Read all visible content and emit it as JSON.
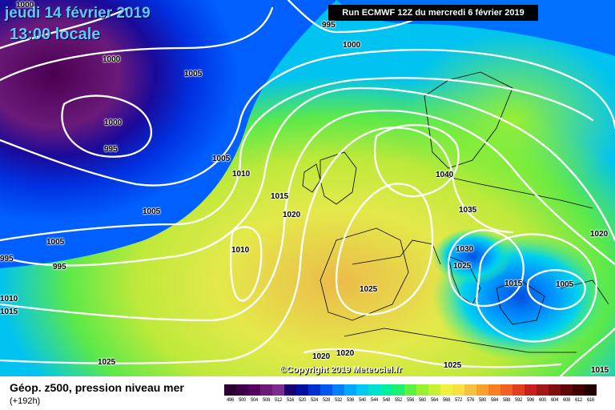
{
  "header": {
    "date": "jeudi 14 février 2019",
    "local_time": "13:00 locale",
    "run_info": "Run ECMWF 12Z du mercredi 6 février 2019",
    "copyright": "©Copyright 2019 Meteociel.fr"
  },
  "legend": {
    "title": "Géop. z500, pression niveau mer",
    "subtitle": "(+192h)",
    "scale_values": [
      "496",
      "500",
      "504",
      "508",
      "512",
      "516",
      "520",
      "524",
      "528",
      "532",
      "536",
      "540",
      "544",
      "548",
      "552",
      "556",
      "560",
      "564",
      "568",
      "572",
      "576",
      "580",
      "584",
      "588",
      "592",
      "596",
      "600",
      "604",
      "608",
      "612",
      "616"
    ],
    "scale_colors": [
      "#2b0033",
      "#3d0048",
      "#55005e",
      "#6b1a78",
      "#7a2d8f",
      "#1a0070",
      "#0010a0",
      "#0030d0",
      "#0058ee",
      "#0080ff",
      "#00a8ff",
      "#00c8f0",
      "#00e0d0",
      "#00f0a0",
      "#20f070",
      "#60f040",
      "#98f030",
      "#c8f030",
      "#f0f040",
      "#f8e040",
      "#f8c040",
      "#f8a030",
      "#f88020",
      "#f06020",
      "#e04020",
      "#c82020",
      "#a01818",
      "#801010",
      "#600808",
      "#400000",
      "#200000"
    ]
  },
  "isobar_labels": [
    {
      "text": "995"
    },
    {
      "text": "1000"
    },
    {
      "text": "1000"
    },
    {
      "text": "1005"
    },
    {
      "text": "1000"
    },
    {
      "text": "995"
    },
    {
      "text": "1005"
    },
    {
      "text": "1010"
    },
    {
      "text": "1015"
    },
    {
      "text": "1020"
    },
    {
      "text": "1005"
    },
    {
      "text": "1010"
    },
    {
      "text": "1005"
    },
    {
      "text": "995"
    },
    {
      "text": "995"
    },
    {
      "text": "1010"
    },
    {
      "text": "1015"
    },
    {
      "text": "1025"
    },
    {
      "text": "1040"
    },
    {
      "text": "1035"
    },
    {
      "text": "1030"
    },
    {
      "text": "1025"
    },
    {
      "text": "1015"
    },
    {
      "text": "1005"
    },
    {
      "text": "1020"
    },
    {
      "text": "1025"
    },
    {
      "text": "1020"
    },
    {
      "text": "1020"
    },
    {
      "text": "1025"
    },
    {
      "text": "1015"
    },
    {
      "text": "1000"
    }
  ]
}
